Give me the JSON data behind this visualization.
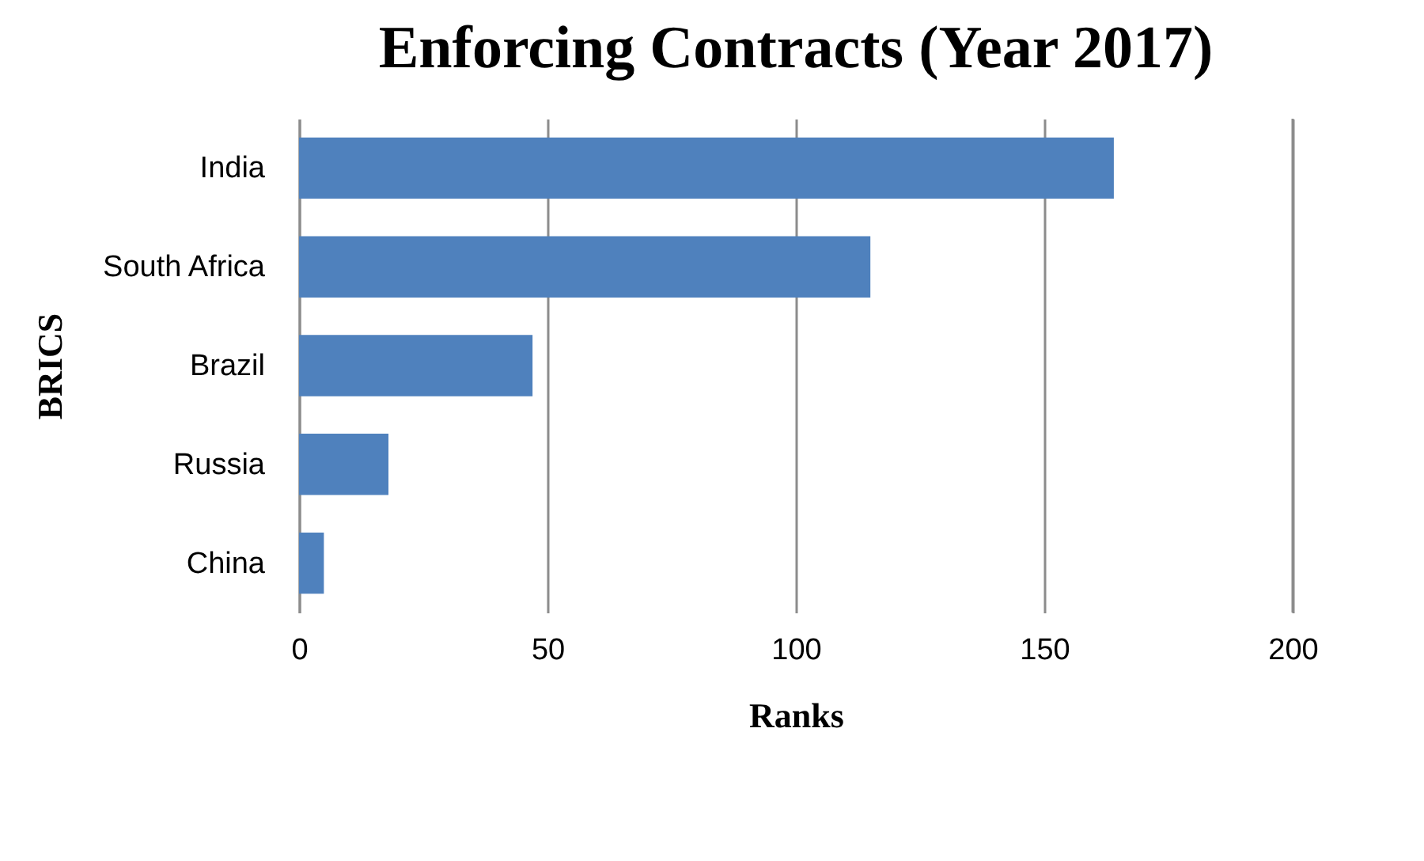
{
  "chart_data": {
    "type": "bar",
    "orientation": "horizontal",
    "title": "Enforcing Contracts (Year 2017)",
    "xlabel": "Ranks",
    "ylabel": "BRICS",
    "categories": [
      "India",
      "South Africa",
      "Brazil",
      "Russia",
      "China"
    ],
    "values": [
      164,
      115,
      47,
      18,
      5
    ],
    "color": "#4f81bd",
    "xlim": [
      0,
      200
    ],
    "xticks": [
      0,
      50,
      100,
      150,
      200
    ],
    "grid": "x"
  }
}
